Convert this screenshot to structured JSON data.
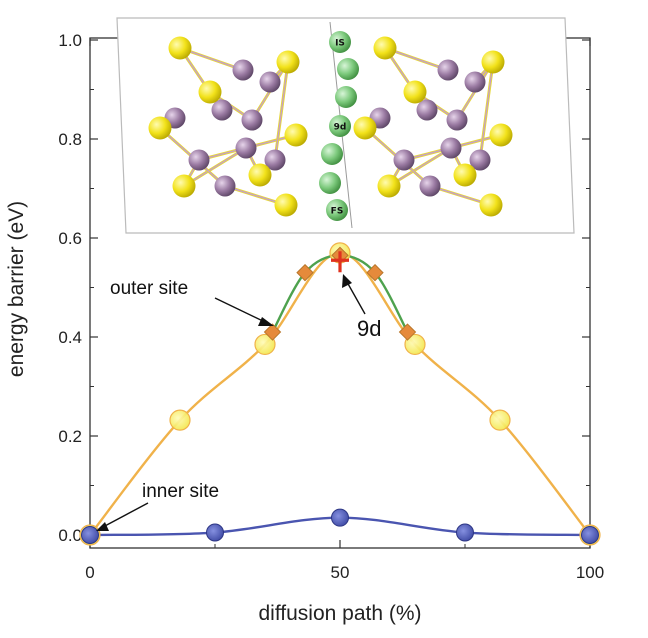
{
  "chart_data": {
    "type": "line",
    "xlabel": "diffusion path (%)",
    "ylabel": "energy barrier (eV)",
    "xlim": [
      0,
      100
    ],
    "ylim": [
      0,
      1.0
    ],
    "xticks": [
      "0",
      "50",
      "100"
    ],
    "yticks": [
      "0.0",
      "0.2",
      "0.4",
      "0.6",
      "0.8",
      "1.0"
    ],
    "grid": false,
    "series": [
      {
        "key": "inner",
        "color": "#4a55b0",
        "marker": "circle",
        "x": [
          0,
          25,
          50,
          75,
          100
        ],
        "y": [
          0.0,
          0.005,
          0.035,
          0.005,
          0.0
        ]
      },
      {
        "key": "outer_circles",
        "color": "#f0b24a",
        "marker_fill": "#f7ec5a",
        "marker": "circle",
        "x": [
          0,
          18,
          35,
          50,
          65,
          82,
          100
        ],
        "y": [
          0.0,
          0.232,
          0.385,
          0.57,
          0.385,
          0.232,
          0.0
        ]
      },
      {
        "key": "outer_diamonds",
        "color": "#4ea24e",
        "marker_fill": "#e58a3b",
        "marker": "diamond",
        "x": [
          36.5,
          43,
          50,
          57,
          63.5
        ],
        "y": [
          0.41,
          0.53,
          0.565,
          0.53,
          0.41
        ]
      }
    ],
    "annotations": [
      {
        "key": "outer_site",
        "text": "outer site",
        "target": [
          36.5,
          0.41
        ]
      },
      {
        "key": "nine_d",
        "text": "9d",
        "target": [
          50,
          0.555
        ]
      },
      {
        "key": "inner_site",
        "text": "inner site",
        "target": [
          0,
          0.0
        ]
      }
    ],
    "inset": {
      "atom_labels": [
        "IS",
        "9d",
        "FS"
      ],
      "colors": {
        "yellow": "#f2e21a",
        "purple": "#9a7aa2",
        "green": "#7cc97c"
      }
    }
  }
}
